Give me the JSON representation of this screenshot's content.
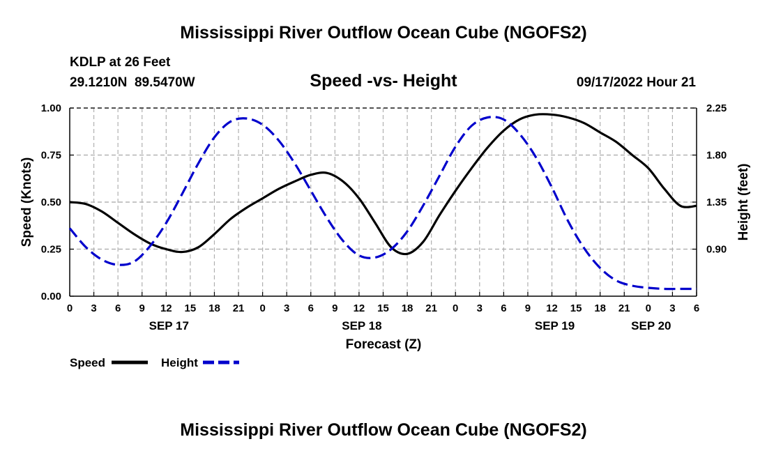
{
  "title": "Mississippi River Outflow Ocean Cube (NGOFS2)",
  "footer_title": "Mississippi River Outflow Ocean Cube (NGOFS2)",
  "station": {
    "name": "KDLP at 26 Feet",
    "coords": "29.1210N  89.5470W"
  },
  "subtitle": "Speed -vs- Height",
  "timestamp": "09/17/2022 Hour 21",
  "legend": {
    "speed_label": "Speed",
    "height_label": "Height"
  },
  "chart_data": {
    "type": "line",
    "title": "Speed -vs- Height",
    "xlabel": "Forecast (Z)",
    "ylabel_left": "Speed (Knots)",
    "ylabel_right": "Height (feet)",
    "x_unit": "forecast hours from 2022-09-17 00Z",
    "xlim": [
      0,
      78
    ],
    "ylim_left": [
      0,
      1.0
    ],
    "ylim_right": [
      0.45,
      2.25
    ],
    "grid": true,
    "x_ticks": [
      0,
      3,
      6,
      9,
      12,
      15,
      18,
      21,
      24,
      27,
      30,
      33,
      36,
      39,
      42,
      45,
      48,
      51,
      54,
      57,
      60,
      63,
      66,
      69,
      72,
      75,
      78
    ],
    "x_tick_labels": [
      "0",
      "3",
      "6",
      "9",
      "12",
      "15",
      "18",
      "21",
      "0",
      "3",
      "6",
      "9",
      "12",
      "15",
      "18",
      "21",
      "0",
      "3",
      "6",
      "9",
      "12",
      "15",
      "18",
      "21",
      "0",
      "3",
      "6"
    ],
    "date_labels": [
      {
        "x": 12,
        "label": "SEP 17"
      },
      {
        "x": 36,
        "label": "SEP 18"
      },
      {
        "x": 60,
        "label": "SEP 19"
      },
      {
        "x": 72,
        "label": "SEP 20"
      }
    ],
    "y_left_ticks": [
      0,
      0.25,
      0.5,
      0.75,
      1.0
    ],
    "y_left_tick_labels": [
      "0.00",
      "0.25",
      "0.50",
      "0.75",
      "1.00"
    ],
    "y_right_ticks": [
      0.9,
      1.35,
      1.8,
      2.25
    ],
    "y_right_tick_labels": [
      "0.90",
      "1.35",
      "1.80",
      "2.25"
    ],
    "series": [
      {
        "name": "Speed",
        "axis": "left",
        "color": "#000000",
        "dash": "solid",
        "x": [
          0,
          2,
          4,
          6,
          8,
          10,
          12,
          14,
          16,
          18,
          20,
          22,
          24,
          26,
          28,
          30,
          32,
          34,
          36,
          38,
          40,
          42,
          44,
          46,
          48,
          50,
          52,
          54,
          56,
          58,
          60,
          62,
          64,
          66,
          68,
          70,
          72,
          74,
          76,
          78
        ],
        "values": [
          0.5,
          0.49,
          0.45,
          0.39,
          0.33,
          0.28,
          0.25,
          0.235,
          0.26,
          0.33,
          0.41,
          0.47,
          0.52,
          0.57,
          0.61,
          0.645,
          0.655,
          0.61,
          0.52,
          0.39,
          0.26,
          0.225,
          0.29,
          0.43,
          0.56,
          0.68,
          0.79,
          0.88,
          0.94,
          0.965,
          0.965,
          0.95,
          0.92,
          0.87,
          0.82,
          0.75,
          0.68,
          0.57,
          0.48,
          0.48
        ]
      },
      {
        "name": "Height",
        "axis": "right",
        "color": "#0000cc",
        "dash": "dashed",
        "x": [
          0,
          2,
          4,
          6,
          8,
          10,
          12,
          14,
          16,
          18,
          20,
          22,
          24,
          26,
          28,
          30,
          32,
          34,
          36,
          38,
          40,
          42,
          44,
          46,
          48,
          50,
          52,
          54,
          56,
          58,
          60,
          62,
          64,
          66,
          68,
          70,
          72,
          74,
          76,
          78
        ],
        "values": [
          1.1,
          0.92,
          0.8,
          0.75,
          0.78,
          0.93,
          1.15,
          1.43,
          1.72,
          1.97,
          2.12,
          2.15,
          2.09,
          1.94,
          1.72,
          1.46,
          1.2,
          0.98,
          0.84,
          0.82,
          0.9,
          1.07,
          1.32,
          1.6,
          1.88,
          2.08,
          2.16,
          2.14,
          2.0,
          1.78,
          1.49,
          1.17,
          0.91,
          0.72,
          0.6,
          0.55,
          0.53,
          0.52,
          0.52,
          0.52
        ]
      }
    ]
  }
}
